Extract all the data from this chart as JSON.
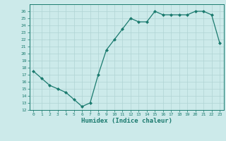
{
  "x": [
    0,
    1,
    2,
    3,
    4,
    5,
    6,
    7,
    8,
    9,
    10,
    11,
    12,
    13,
    14,
    15,
    16,
    17,
    18,
    19,
    20,
    21,
    22,
    23
  ],
  "y": [
    17.5,
    16.5,
    15.5,
    15.0,
    14.5,
    13.5,
    12.5,
    13.0,
    17.0,
    20.5,
    22.0,
    23.5,
    25.0,
    24.5,
    24.5,
    26.0,
    25.5,
    25.5,
    25.5,
    25.5,
    26.0,
    26.0,
    25.5,
    21.5
  ],
  "xlabel": "Humidex (Indice chaleur)",
  "line_color": "#1a7a6e",
  "marker": "D",
  "marker_size": 2.0,
  "bg_color": "#cceaea",
  "grid_color": "#b0d4d4",
  "ylim": [
    12,
    27
  ],
  "xlim": [
    -0.5,
    23.5
  ],
  "yticks": [
    12,
    13,
    14,
    15,
    16,
    17,
    18,
    19,
    20,
    21,
    22,
    23,
    24,
    25,
    26
  ],
  "xticks": [
    0,
    1,
    2,
    3,
    4,
    5,
    6,
    7,
    8,
    9,
    10,
    11,
    12,
    13,
    14,
    15,
    16,
    17,
    18,
    19,
    20,
    21,
    22,
    23
  ]
}
